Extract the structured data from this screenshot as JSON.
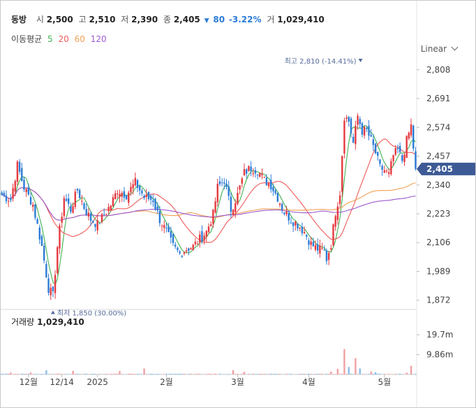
{
  "header": {
    "name": "동방",
    "open_label": "시",
    "open": "2,500",
    "high_label": "고",
    "high": "2,510",
    "low_label": "저",
    "low": "2,390",
    "close_label": "종",
    "close": "2,405",
    "change": "80",
    "change_pct": "-3.22%",
    "volume_label": "거",
    "volume": "1,029,410"
  },
  "ma_legend": {
    "title": "이동평균",
    "items": [
      {
        "label": "5",
        "color": "#3fb34f"
      },
      {
        "label": "20",
        "color": "#f05a5a"
      },
      {
        "label": "60",
        "color": "#f0a050"
      },
      {
        "label": "120",
        "color": "#9b59d0"
      }
    ]
  },
  "scale_button": "Linear",
  "colors": {
    "up": "#e5393f",
    "down": "#2b7bd6",
    "volume_up": "#f0a0a4",
    "volume_down": "#8dbde8",
    "ma5": "#3fb34f",
    "ma20": "#f05a5a",
    "ma60": "#f0a050",
    "ma120": "#9b59d0",
    "price_tag": "#3d5a96"
  },
  "volume_panel": {
    "title": "거래량",
    "value": "1,029,410"
  },
  "chart_data": {
    "type": "candlestick",
    "y_ticks": [
      "2,808",
      "2,691",
      "2,574",
      "2,457",
      "2,340",
      "2,223",
      "2,106",
      "1,989",
      "1,872"
    ],
    "y_tick_values": [
      2808,
      2691,
      2574,
      2457,
      2340,
      2223,
      2106,
      1989,
      1872
    ],
    "ylim": [
      1840,
      2850
    ],
    "x_ticks": [
      {
        "label": "12월",
        "index": 12
      },
      {
        "label": "12/14",
        "index": 27
      },
      {
        "label": "2025",
        "index": 43
      },
      {
        "label": "2월",
        "index": 74
      },
      {
        "label": "3월",
        "index": 106
      },
      {
        "label": "4월",
        "index": 138
      },
      {
        "label": "5월",
        "index": 172
      }
    ],
    "current_price": {
      "label": "2,405",
      "value": 2405
    },
    "max_annotation": {
      "label": "최고",
      "value_text": "2,810 (-14.41%)",
      "index": 160,
      "value": 2810
    },
    "min_annotation": {
      "label": "최저",
      "value_text": "1,850 (30.00%)",
      "index": 23,
      "value": 1850
    },
    "volume_ticks": [
      "19.7m",
      "9.86m"
    ],
    "volume_tick_values": [
      19.7,
      9.86
    ],
    "volume_ylim": [
      0,
      26
    ],
    "anchors": [
      [
        0,
        2300
      ],
      [
        4,
        2280
      ],
      [
        7,
        2420
      ],
      [
        10,
        2330
      ],
      [
        14,
        2260
      ],
      [
        18,
        2090
      ],
      [
        21,
        1920
      ],
      [
        23,
        1890
      ],
      [
        25,
        2090
      ],
      [
        28,
        2290
      ],
      [
        31,
        2240
      ],
      [
        34,
        2320
      ],
      [
        37,
        2250
      ],
      [
        40,
        2200
      ],
      [
        43,
        2180
      ],
      [
        46,
        2220
      ],
      [
        49,
        2260
      ],
      [
        52,
        2320
      ],
      [
        56,
        2300
      ],
      [
        60,
        2350
      ],
      [
        64,
        2290
      ],
      [
        68,
        2280
      ],
      [
        71,
        2200
      ],
      [
        74,
        2150
      ],
      [
        77,
        2090
      ],
      [
        80,
        2060
      ],
      [
        83,
        2080
      ],
      [
        86,
        2090
      ],
      [
        89,
        2120
      ],
      [
        92,
        2150
      ],
      [
        95,
        2220
      ],
      [
        97,
        2330
      ],
      [
        100,
        2360
      ],
      [
        103,
        2240
      ],
      [
        106,
        2300
      ],
      [
        109,
        2390
      ],
      [
        112,
        2410
      ],
      [
        115,
        2400
      ],
      [
        118,
        2360
      ],
      [
        121,
        2340
      ],
      [
        124,
        2290
      ],
      [
        127,
        2230
      ],
      [
        130,
        2200
      ],
      [
        133,
        2180
      ],
      [
        136,
        2150
      ],
      [
        139,
        2100
      ],
      [
        142,
        2080
      ],
      [
        145,
        2070
      ],
      [
        146,
        2040
      ],
      [
        148,
        2100
      ],
      [
        150,
        2230
      ],
      [
        152,
        2310
      ],
      [
        154,
        2620
      ],
      [
        156,
        2600
      ],
      [
        158,
        2510
      ],
      [
        160,
        2620
      ],
      [
        162,
        2560
      ],
      [
        164,
        2560
      ],
      [
        166,
        2520
      ],
      [
        168,
        2470
      ],
      [
        170,
        2410
      ],
      [
        172,
        2400
      ],
      [
        174,
        2380
      ],
      [
        176,
        2460
      ],
      [
        178,
        2480
      ],
      [
        180,
        2440
      ],
      [
        182,
        2520
      ],
      [
        184,
        2580
      ],
      [
        186,
        2405
      ]
    ],
    "volume_spikes": [
      [
        4,
        1.0,
        "up"
      ],
      [
        13,
        1.0,
        "up"
      ],
      [
        20,
        2.1,
        "down"
      ],
      [
        32,
        1.8,
        "up"
      ],
      [
        53,
        1.7,
        "up"
      ],
      [
        64,
        3.0,
        "up"
      ],
      [
        104,
        2.2,
        "up"
      ],
      [
        109,
        1.3,
        "up"
      ],
      [
        148,
        1.4,
        "up"
      ],
      [
        151,
        2.8,
        "up"
      ],
      [
        154,
        12.6,
        "up"
      ],
      [
        156,
        3.7,
        "down"
      ],
      [
        159,
        8.1,
        "up"
      ],
      [
        161,
        3.0,
        "down"
      ],
      [
        166,
        1.5,
        "up"
      ],
      [
        168,
        1.1,
        "down"
      ],
      [
        182,
        0.9,
        "up"
      ],
      [
        184,
        4.3,
        "up"
      ]
    ]
  }
}
